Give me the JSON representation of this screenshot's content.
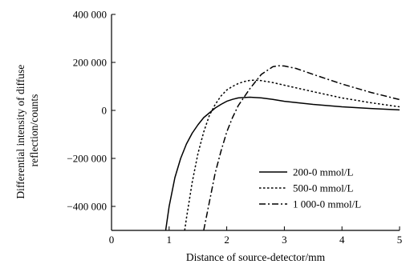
{
  "chart_data": {
    "type": "line",
    "title": "",
    "xlabel": "Distance  of  source-detector/mm",
    "ylabel": [
      "Differential intensity of diffuse",
      "reflection/counts"
    ],
    "xlim": [
      0,
      5
    ],
    "ylim": [
      -500000,
      400000
    ],
    "x_ticks": [
      0,
      1,
      2,
      3,
      4,
      5
    ],
    "x_tick_labels": [
      "0",
      "1",
      "2",
      "3",
      "4",
      "5"
    ],
    "y_ticks": [
      400000,
      200000,
      0,
      -200000,
      -400000
    ],
    "y_tick_labels": [
      "400 000",
      "200 000",
      "0",
      "−200 000",
      "−400 000"
    ],
    "grid": false,
    "legend_position": "lower-right",
    "series": [
      {
        "name": "200-0 mmol/L",
        "style": "solid",
        "color": "#000000",
        "x": [
          0.94,
          1.0,
          1.1,
          1.2,
          1.3,
          1.4,
          1.5,
          1.6,
          1.7,
          1.8,
          1.9,
          2.0,
          2.1,
          2.2,
          2.4,
          2.6,
          2.8,
          3.0,
          3.5,
          4.0,
          4.5,
          5.0
        ],
        "y": [
          -500000,
          -400000,
          -280000,
          -200000,
          -140000,
          -95000,
          -60000,
          -30000,
          -10000,
          10000,
          25000,
          38000,
          46000,
          52000,
          55000,
          52000,
          46000,
          38000,
          25000,
          15000,
          8000,
          2000
        ]
      },
      {
        "name": "500-0 mmol/L",
        "style": "dotted",
        "color": "#000000",
        "x": [
          1.27,
          1.3,
          1.4,
          1.5,
          1.6,
          1.7,
          1.8,
          1.9,
          2.0,
          2.1,
          2.2,
          2.3,
          2.4,
          2.5,
          2.6,
          2.8,
          3.0,
          3.5,
          4.0,
          4.5,
          5.0
        ],
        "y": [
          -500000,
          -450000,
          -300000,
          -180000,
          -90000,
          -20000,
          25000,
          60000,
          85000,
          100000,
          112000,
          120000,
          125000,
          126000,
          124000,
          116000,
          105000,
          78000,
          52000,
          32000,
          15000
        ]
      },
      {
        "name": "1 000-0 mmol/L",
        "style": "dashdot",
        "color": "#000000",
        "x": [
          1.6,
          1.7,
          1.8,
          1.9,
          2.0,
          2.1,
          2.2,
          2.4,
          2.6,
          2.8,
          2.9,
          3.0,
          3.2,
          3.5,
          4.0,
          4.5,
          5.0
        ],
        "y": [
          -500000,
          -380000,
          -260000,
          -170000,
          -90000,
          -30000,
          20000,
          90000,
          150000,
          182000,
          186000,
          185000,
          175000,
          150000,
          110000,
          75000,
          45000
        ]
      }
    ]
  }
}
